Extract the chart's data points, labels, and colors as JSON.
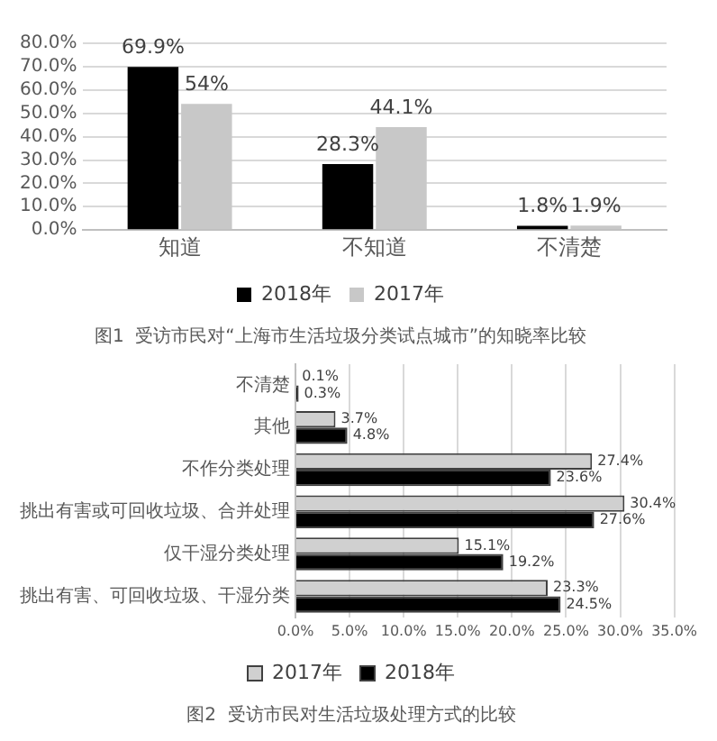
{
  "chart_data": [
    {
      "type": "bar",
      "title": "图1  受访市民对“上海市生活垃圾分类试点城市”的知晓率比较",
      "categories": [
        "知道",
        "不知道",
        "不清楚"
      ],
      "series": [
        {
          "name": "2018年",
          "color": "#000000",
          "values": [
            69.9,
            28.3,
            1.8
          ],
          "value_labels": [
            "69.9%",
            "28.3%",
            "1.8%"
          ]
        },
        {
          "name": "2017年",
          "color": "#c8c8c8",
          "values": [
            54,
            44.1,
            1.9
          ],
          "value_labels": [
            "54%",
            "44.1%",
            "1.9%"
          ]
        }
      ],
      "ylim": [
        0,
        80
      ],
      "yticks": [
        {
          "value": 0,
          "label": "0.0%"
        },
        {
          "value": 10,
          "label": "10.0%"
        },
        {
          "value": 20,
          "label": "20.0%"
        },
        {
          "value": 30,
          "label": "30.0%"
        },
        {
          "value": 40,
          "label": "40.0%"
        },
        {
          "value": 50,
          "label": "50.0%"
        },
        {
          "value": 60,
          "label": "60.0%"
        },
        {
          "value": 70,
          "label": "70.0%"
        },
        {
          "value": 80,
          "label": "80.0%"
        }
      ],
      "grid": "y",
      "legend": "bottom"
    },
    {
      "type": "bar",
      "orientation": "horizontal",
      "title": "图2  受访市民对生活垃圾处理方式的比较",
      "categories": [
        "不清楚",
        "其他",
        "不作分类处理",
        "挑出有害或可回收垃圾、合并处理",
        "仅干湿分类处理",
        "挑出有害、可回收垃圾、干湿分类"
      ],
      "series": [
        {
          "name": "2017年",
          "color": "#d0d0d0",
          "values": [
            0.1,
            3.7,
            27.4,
            30.4,
            15.1,
            23.3
          ],
          "value_labels": [
            "0.1%",
            "3.7%",
            "27.4%",
            "30.4%",
            "15.1%",
            "23.3%"
          ]
        },
        {
          "name": "2018年",
          "color": "#000000",
          "values": [
            0.3,
            4.8,
            23.6,
            27.6,
            19.2,
            24.5
          ],
          "value_labels": [
            "0.3%",
            "4.8%",
            "23.6%",
            "27.6%",
            "19.2%",
            "24.5%"
          ]
        }
      ],
      "xlim": [
        0,
        35
      ],
      "xticks": [
        {
          "value": 0,
          "label": "0.0%"
        },
        {
          "value": 5,
          "label": "5.0%"
        },
        {
          "value": 10,
          "label": "10.0%"
        },
        {
          "value": 15,
          "label": "15.0%"
        },
        {
          "value": 20,
          "label": "20.0%"
        },
        {
          "value": 25,
          "label": "25.0%"
        },
        {
          "value": 30,
          "label": "30.0%"
        },
        {
          "value": 35,
          "label": "35.0%"
        }
      ],
      "grid": "x",
      "legend": "bottom"
    }
  ]
}
